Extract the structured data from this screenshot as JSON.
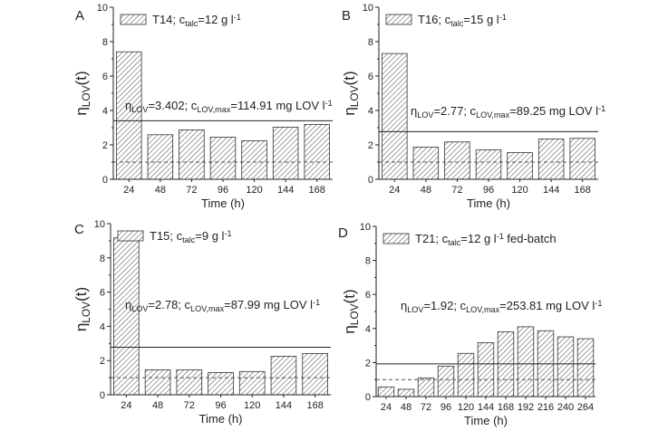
{
  "chart_data": [
    {
      "type": "bar",
      "panel_label": "A",
      "legend": [
        {
          "t": "T14; c"
        },
        {
          "t": "talc",
          "s": "sub"
        },
        {
          "t": "=12 g l"
        },
        {
          "t": "-1",
          "s": "sup"
        }
      ],
      "annotation": [
        {
          "t": "η"
        },
        {
          "t": "LOV",
          "s": "sub"
        },
        {
          "t": "=3.402; c"
        },
        {
          "t": "LOV,max",
          "s": "sub"
        },
        {
          "t": "=114.91 mg LOV l"
        },
        {
          "t": "-1",
          "s": "sup"
        }
      ],
      "ylabel": [
        {
          "t": "η"
        },
        {
          "t": "LOV",
          "s": "sub"
        },
        {
          "t": "(t)"
        }
      ],
      "xlabel": "Time (h)",
      "categories": [
        "24",
        "48",
        "72",
        "96",
        "120",
        "144",
        "168"
      ],
      "values": [
        7.41,
        2.59,
        2.87,
        2.45,
        2.24,
        3.03,
        3.19
      ],
      "mean_line": 3.402,
      "reference_dashed_line": 1,
      "ylim": [
        0,
        10
      ],
      "yticks": [
        "0",
        "2",
        "4",
        "6",
        "8",
        "10"
      ],
      "legend_position": "top-left"
    },
    {
      "type": "bar",
      "panel_label": "B",
      "legend": [
        {
          "t": "T16; c"
        },
        {
          "t": "talc",
          "s": "sub"
        },
        {
          "t": "=15 g l"
        },
        {
          "t": "-1",
          "s": "sup"
        }
      ],
      "annotation": [
        {
          "t": "η"
        },
        {
          "t": "LOV",
          "s": "sub"
        },
        {
          "t": "=2.77; c"
        },
        {
          "t": "LOV,max",
          "s": "sub"
        },
        {
          "t": "=89.25 mg LOV l"
        },
        {
          "t": "-1",
          "s": "sup"
        }
      ],
      "ylabel": [
        {
          "t": "η"
        },
        {
          "t": "LOV",
          "s": "sub"
        },
        {
          "t": "(t)"
        }
      ],
      "xlabel": "Time (h)",
      "categories": [
        "24",
        "48",
        "72",
        "96",
        "120",
        "144",
        "168"
      ],
      "values": [
        7.31,
        1.87,
        2.17,
        1.71,
        1.55,
        2.34,
        2.38
      ],
      "mean_line": 2.77,
      "reference_dashed_line": 1,
      "ylim": [
        0,
        10
      ],
      "yticks": [
        "0",
        "2",
        "4",
        "6",
        "8",
        "10"
      ],
      "legend_position": "top-left"
    },
    {
      "type": "bar",
      "panel_label": "C",
      "legend": [
        {
          "t": "T15; c"
        },
        {
          "t": "talc",
          "s": "sub"
        },
        {
          "t": "=9 g l"
        },
        {
          "t": "-1",
          "s": "sup"
        }
      ],
      "annotation": [
        {
          "t": "η"
        },
        {
          "t": "LOV",
          "s": "sub"
        },
        {
          "t": "=2.78; c"
        },
        {
          "t": "LOV,max",
          "s": "sub"
        },
        {
          "t": "=87.99 mg LOV l"
        },
        {
          "t": "-1",
          "s": "sup"
        }
      ],
      "ylabel": [
        {
          "t": "η"
        },
        {
          "t": "LOV",
          "s": "sub"
        },
        {
          "t": "(t)"
        }
      ],
      "xlabel": "Time (h)",
      "categories": [
        "24",
        "48",
        "72",
        "96",
        "120",
        "144",
        "168"
      ],
      "values": [
        9.17,
        1.46,
        1.46,
        1.3,
        1.36,
        2.25,
        2.41
      ],
      "mean_line": 2.78,
      "reference_dashed_line": 1,
      "ylim": [
        0,
        10
      ],
      "yticks": [
        "0",
        "2",
        "4",
        "6",
        "8",
        "10"
      ],
      "legend_position": "top-left"
    },
    {
      "type": "bar",
      "panel_label": "D",
      "legend": [
        {
          "t": "T21; c"
        },
        {
          "t": "talc",
          "s": "sub"
        },
        {
          "t": "=12 g l"
        },
        {
          "t": "-1",
          "s": "sup"
        },
        {
          "t": " fed-batch"
        }
      ],
      "annotation": [
        {
          "t": "η"
        },
        {
          "t": "LOV",
          "s": "sub"
        },
        {
          "t": "=1.92; c"
        },
        {
          "t": "LOV,max",
          "s": "sub"
        },
        {
          "t": "=253.81 mg LOV l"
        },
        {
          "t": "-1",
          "s": "sup"
        }
      ],
      "ylabel": [
        {
          "t": "η"
        },
        {
          "t": "LOV",
          "s": "sub"
        },
        {
          "t": "(t)"
        }
      ],
      "xlabel": "Time (h)",
      "categories": [
        "24",
        "48",
        "72",
        "96",
        "120",
        "144",
        "168",
        "192",
        "216",
        "240",
        "264"
      ],
      "values": [
        0.57,
        0.43,
        1.1,
        1.79,
        2.54,
        3.17,
        3.81,
        4.1,
        3.87,
        3.51,
        3.4
      ],
      "mean_line": 1.92,
      "reference_dashed_line": 1,
      "ylim": [
        0,
        10
      ],
      "yticks": [
        "0",
        "2",
        "4",
        "6",
        "8",
        "10"
      ],
      "legend_position": "top-left"
    }
  ],
  "colors": {
    "ink": "#222222",
    "bar_fill": "#ffffff",
    "hatch": "#444444",
    "dashed": "#555555"
  }
}
